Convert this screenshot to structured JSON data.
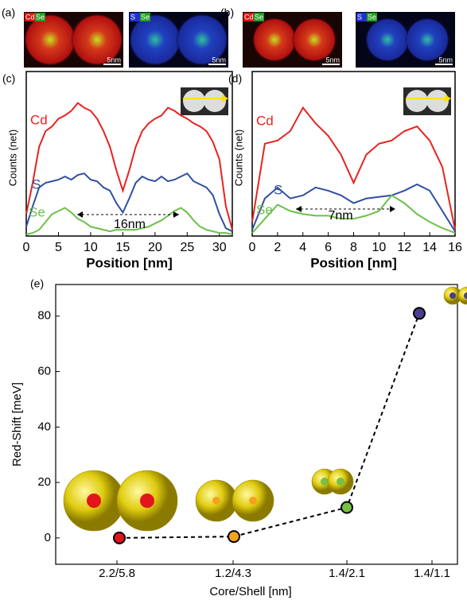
{
  "images": [
    {
      "label": "(a)",
      "maps": [
        {
          "channels": [
            "Cd",
            "Se"
          ],
          "scale": "5nm"
        },
        {
          "channels": [
            "S",
            "Se"
          ],
          "scale": "5nm"
        }
      ]
    },
    {
      "label": "(b)",
      "maps": [
        {
          "channels": [
            "Cd",
            "Se"
          ],
          "scale": "5nm"
        },
        {
          "channels": [
            "S",
            "Se"
          ],
          "scale": "5nm"
        }
      ]
    }
  ],
  "chart_data": [
    {
      "type": "line",
      "panel_label": "(c)",
      "xlabel": "Position [nm]",
      "ylabel": "Counts (net)",
      "annotation": "16nm",
      "x": [
        0,
        1,
        2,
        3,
        4,
        5,
        6,
        7,
        8,
        9,
        10,
        11,
        12,
        13,
        14,
        15,
        16,
        17,
        18,
        19,
        20,
        21,
        22,
        23,
        24,
        25,
        26,
        27,
        28,
        29,
        30,
        31,
        32
      ],
      "xlim": [
        0,
        32
      ],
      "xticks": [
        0,
        5,
        10,
        15,
        20,
        25,
        30
      ],
      "ylim": [
        0,
        100
      ],
      "series": [
        {
          "name": "Cd",
          "color": "#e8231f",
          "values": [
            14,
            34,
            57,
            67,
            70,
            75,
            77,
            80,
            85,
            82,
            80,
            75,
            67,
            57,
            42,
            29,
            42,
            57,
            67,
            72,
            75,
            77,
            82,
            80,
            77,
            75,
            72,
            70,
            67,
            60,
            49,
            19,
            4
          ]
        },
        {
          "name": "S",
          "color": "#2f4fa2",
          "values": [
            6,
            19,
            31,
            34,
            35,
            36,
            38,
            36,
            39,
            40,
            36,
            35,
            31,
            29,
            21,
            15,
            24,
            34,
            38,
            36,
            35,
            38,
            35,
            36,
            38,
            40,
            35,
            33,
            31,
            26,
            14,
            5,
            3
          ]
        },
        {
          "name": "Se",
          "color": "#6cc04a",
          "values": [
            1,
            2,
            4,
            9,
            14,
            16,
            18,
            15,
            11,
            9,
            6,
            5,
            4,
            3,
            4,
            4,
            4,
            4,
            5,
            6,
            8,
            10,
            13,
            16,
            18,
            15,
            10,
            6,
            4,
            3,
            2,
            2,
            1
          ]
        }
      ]
    },
    {
      "type": "line",
      "panel_label": "(d)",
      "xlabel": "Position [nm]",
      "ylabel": "Counts (net)",
      "annotation": "7nm",
      "x": [
        0,
        1,
        2,
        3,
        4,
        5,
        6,
        7,
        8,
        9,
        10,
        11,
        12,
        13,
        14,
        15,
        16
      ],
      "xlim": [
        0,
        16
      ],
      "xticks": [
        0,
        2,
        4,
        6,
        8,
        10,
        12,
        14,
        16
      ],
      "ylim": [
        0,
        100
      ],
      "series": [
        {
          "name": "Cd",
          "color": "#e8231f",
          "values": [
            9,
            59,
            61,
            67,
            82,
            72,
            64,
            52,
            34,
            52,
            59,
            61,
            67,
            70,
            61,
            44,
            4
          ]
        },
        {
          "name": "S",
          "color": "#2f4fa2",
          "values": [
            4,
            24,
            31,
            24,
            26,
            31,
            29,
            26,
            21,
            24,
            25,
            26,
            29,
            33,
            29,
            16,
            3
          ]
        },
        {
          "name": "Se",
          "color": "#6cc04a",
          "values": [
            2,
            11,
            20,
            16,
            14,
            13,
            13,
            11,
            11,
            13,
            16,
            26,
            21,
            14,
            9,
            5,
            2
          ]
        }
      ]
    },
    {
      "type": "dotline",
      "panel_label": "(e)",
      "xlabel": "Core/Shell [nm]",
      "ylabel": "Red-Shift [meV]",
      "categories": [
        "2.2/5.8",
        "1.2/4.3",
        "1.4/2.1",
        "1.4/1.1"
      ],
      "values": [
        0,
        0.5,
        11,
        81
      ],
      "colors": [
        "#e3141b",
        "#f5a21f",
        "#77c043",
        "#4c3d8f"
      ],
      "ylim": [
        -9.5,
        91.4
      ],
      "yticks": [
        0,
        20,
        40,
        60,
        80
      ]
    }
  ]
}
